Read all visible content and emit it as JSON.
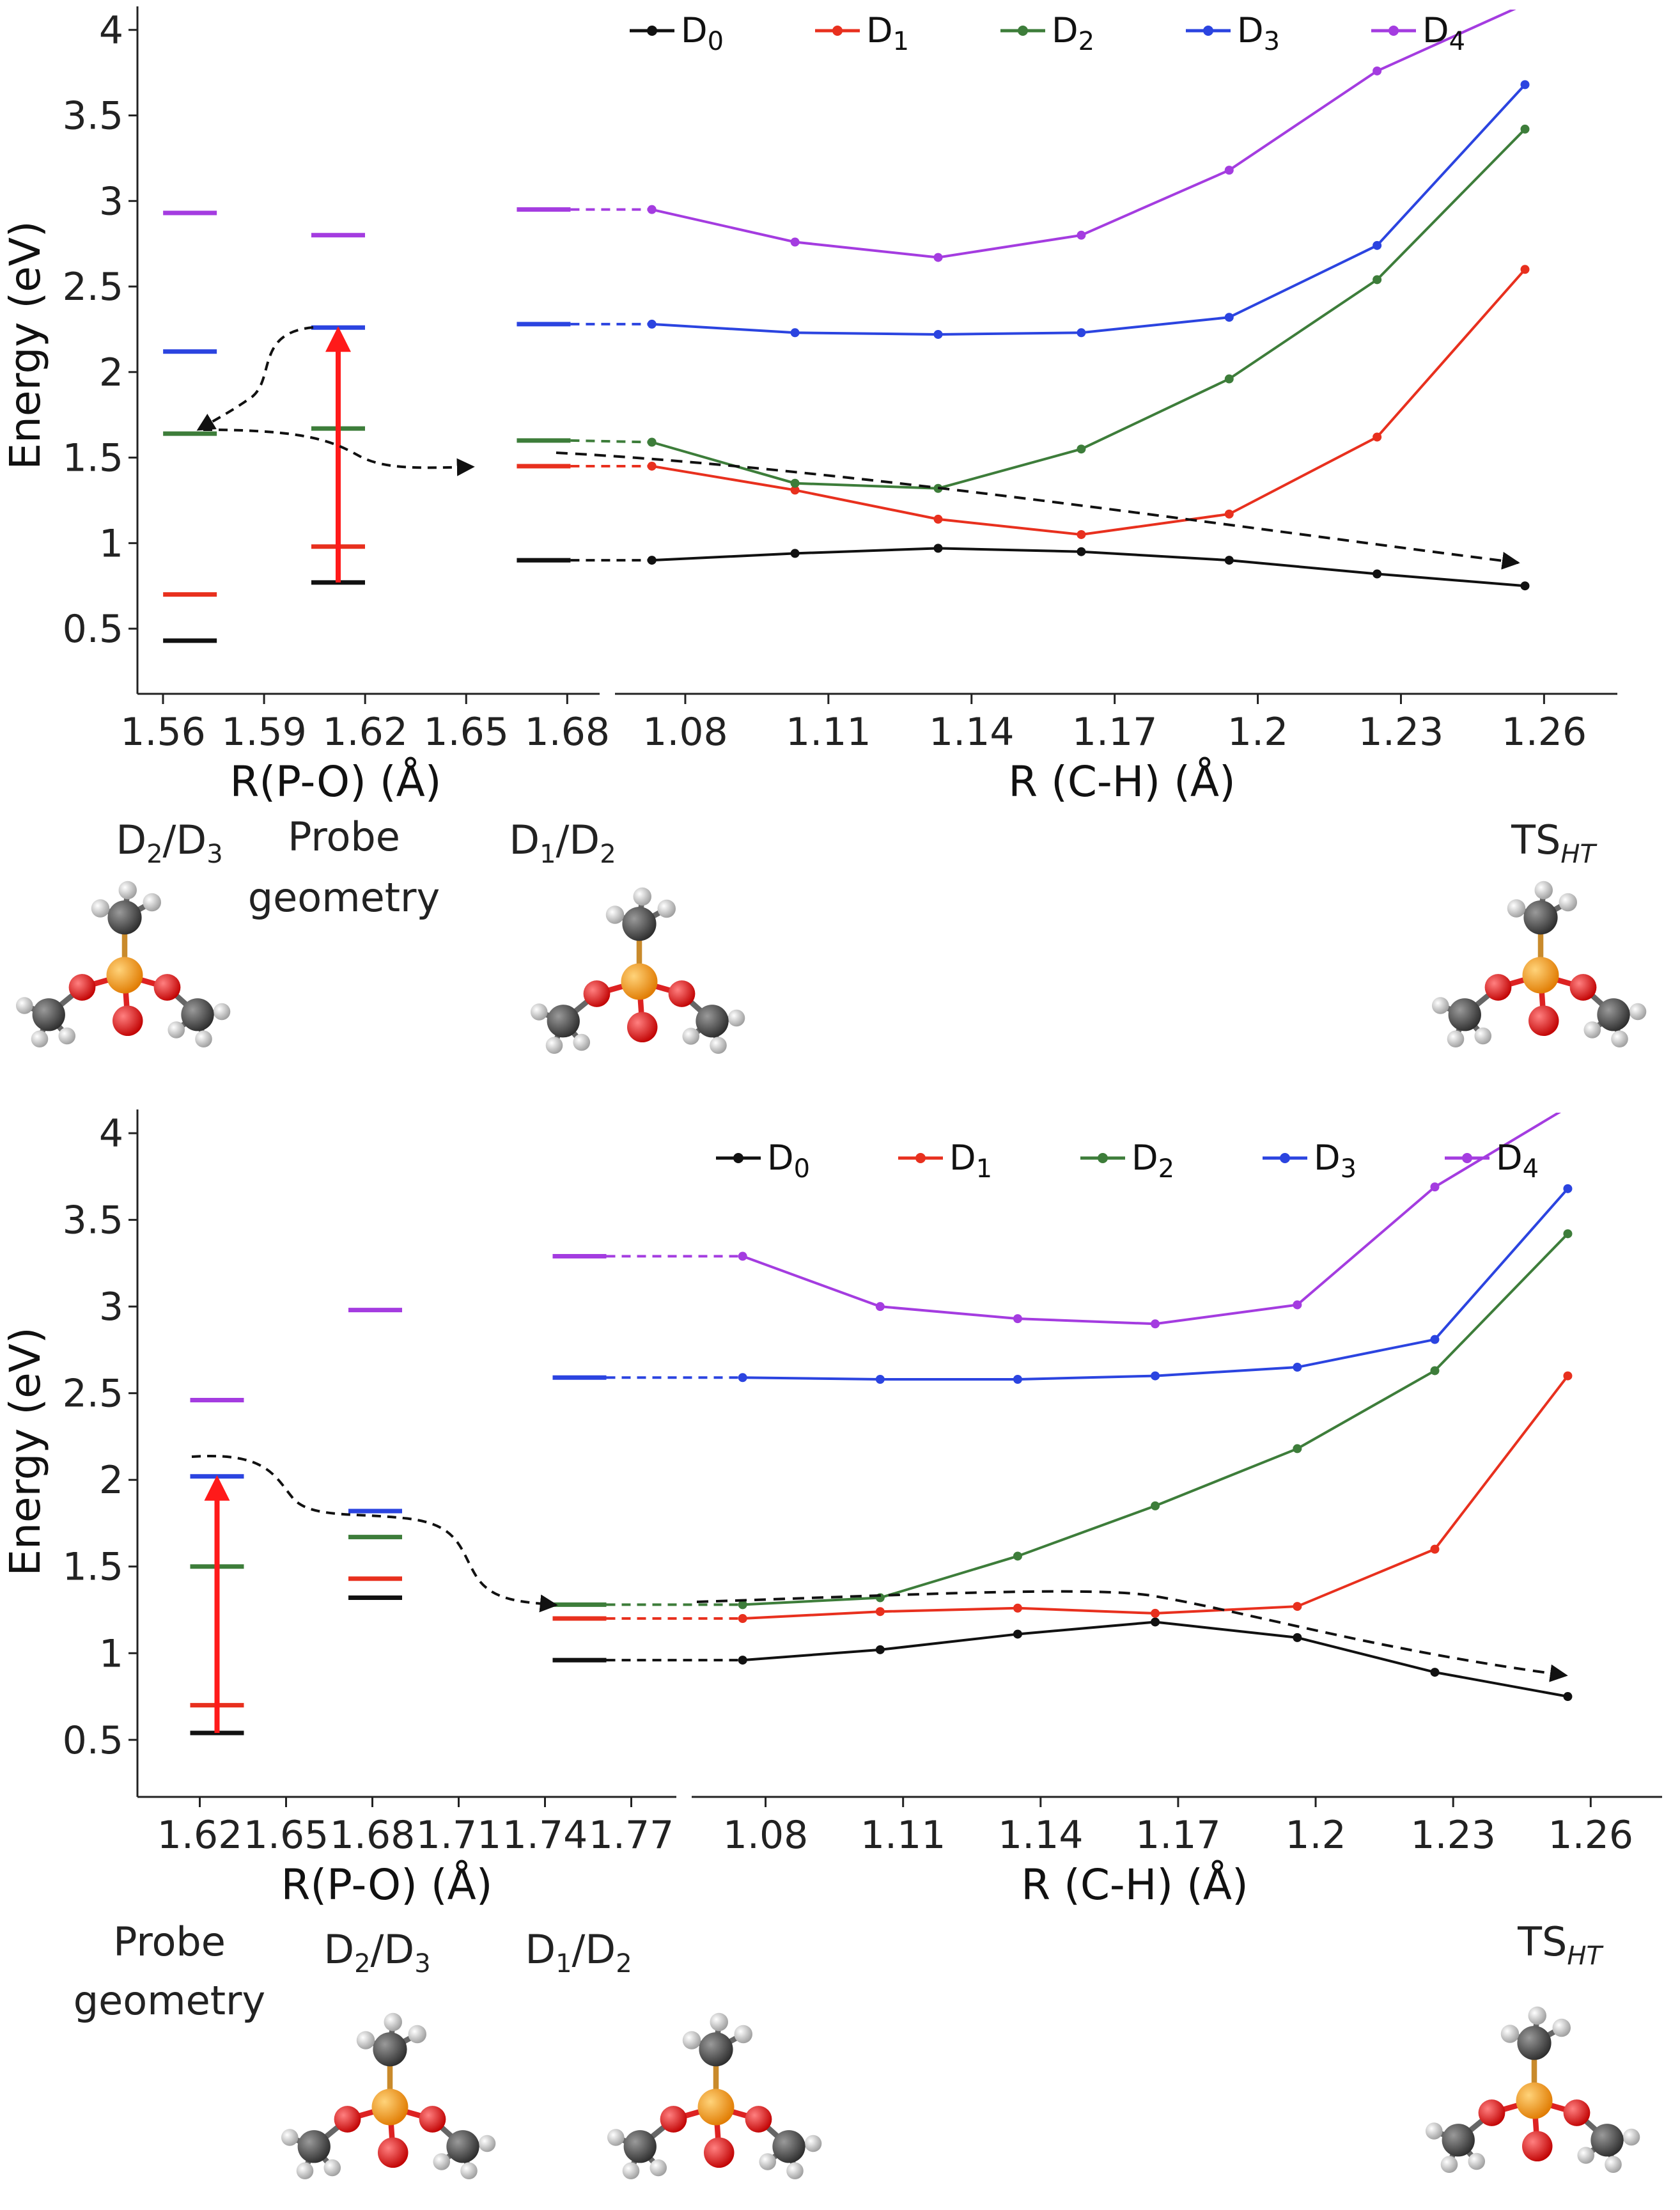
{
  "colors": {
    "D0": "#111111",
    "D1": "#e8301e",
    "D2": "#3d7d3a",
    "D3": "#2b44e0",
    "D4": "#a43ce0",
    "arrow": "#ff1a1a"
  },
  "chart_data": [
    {
      "type": "line",
      "ylabel": "Energy (eV)",
      "ylim": [
        0.25,
        4.1
      ],
      "yticks": [
        "0.5",
        "1",
        "1.5",
        "2",
        "2.5",
        "3",
        "3.5",
        "4"
      ],
      "legend": [
        "D",
        "D",
        "D",
        "D",
        "D"
      ],
      "legend_subs": [
        "0",
        "1",
        "2",
        "3",
        "4"
      ],
      "left_axis": {
        "xlabel": "R(P-O) (Å)",
        "ticks": [
          "1.56",
          "1.59",
          "1.62",
          "1.65",
          "1.68"
        ],
        "xlim": [
          1.56,
          1.69
        ]
      },
      "right_axis": {
        "xlabel": "R (C-H) (Å)",
        "ticks": [
          "1.08",
          "1.11",
          "1.14",
          "1.17",
          "1.2",
          "1.23",
          "1.26"
        ],
        "xlim": [
          1.065,
          1.27
        ]
      },
      "left_levels": [
        {
          "x": 1.568,
          "D0": 0.43,
          "D1": 0.7,
          "D2": 1.64,
          "D3": 2.12,
          "D4": 2.93
        },
        {
          "x": 1.612,
          "D0": 0.77,
          "D1": 0.98,
          "D2": 1.67,
          "D3": 2.26,
          "D4": 2.8
        },
        {
          "x": 1.673,
          "D0": 0.9,
          "D1": 1.45,
          "D2": 1.6,
          "D3": 2.28,
          "D4": 2.95
        }
      ],
      "x": [
        1.073,
        1.103,
        1.133,
        1.163,
        1.194,
        1.225,
        1.256
      ],
      "series": [
        {
          "name": "D0",
          "values": [
            0.9,
            0.94,
            0.97,
            0.95,
            0.9,
            0.82,
            0.75
          ]
        },
        {
          "name": "D1",
          "values": [
            1.45,
            1.31,
            1.14,
            1.05,
            1.17,
            1.62,
            2.6
          ]
        },
        {
          "name": "D2",
          "values": [
            1.59,
            1.35,
            1.32,
            1.55,
            1.96,
            2.54,
            3.42
          ]
        },
        {
          "name": "D3",
          "values": [
            2.28,
            2.23,
            2.22,
            2.23,
            2.32,
            2.74,
            3.68
          ]
        },
        {
          "name": "D4",
          "values": [
            2.95,
            2.76,
            2.67,
            2.8,
            3.18,
            3.76,
            4.15
          ]
        }
      ],
      "excitation": {
        "x": 1.612,
        "from": 0.77,
        "to": 2.26
      }
    },
    {
      "type": "line",
      "ylabel": "Energy (eV)",
      "ylim": [
        0.3,
        4.1
      ],
      "yticks": [
        "0.5",
        "1",
        "1.5",
        "2",
        "2.5",
        "3",
        "3.5",
        "4"
      ],
      "legend": [
        "D",
        "D",
        "D",
        "D",
        "D"
      ],
      "legend_subs": [
        "0",
        "1",
        "2",
        "3",
        "4"
      ],
      "left_axis": {
        "xlabel": "R(P-O) (Å)",
        "ticks": [
          "1.62",
          "1.65",
          "1.68",
          "1.71",
          "1.74",
          "1.77"
        ],
        "xlim": [
          1.605,
          1.785
        ]
      },
      "right_axis": {
        "xlabel": "R (C-H) (Å)",
        "ticks": [
          "1.08",
          "1.11",
          "1.14",
          "1.17",
          "1.2",
          "1.23",
          "1.26"
        ],
        "xlim": [
          1.065,
          1.27
        ]
      },
      "left_levels": [
        {
          "x": 1.626,
          "D0": 0.54,
          "D1": 0.7,
          "D2": 1.5,
          "D3": 2.02,
          "D4": 2.46
        },
        {
          "x": 1.681,
          "D0": 1.32,
          "D1": 1.43,
          "D2": 1.67,
          "D3": 1.82,
          "D4": 2.98
        },
        {
          "x": 1.752,
          "D0": 0.96,
          "D1": 1.2,
          "D2": 1.28,
          "D3": 2.59,
          "D4": 3.29
        }
      ],
      "x": [
        1.075,
        1.105,
        1.135,
        1.165,
        1.196,
        1.226,
        1.255
      ],
      "series": [
        {
          "name": "D0",
          "values": [
            0.96,
            1.02,
            1.11,
            1.18,
            1.09,
            0.89,
            0.75
          ]
        },
        {
          "name": "D1",
          "values": [
            1.2,
            1.24,
            1.26,
            1.23,
            1.27,
            1.6,
            2.6
          ]
        },
        {
          "name": "D2",
          "values": [
            1.28,
            1.32,
            1.56,
            1.85,
            2.18,
            2.63,
            3.42
          ]
        },
        {
          "name": "D3",
          "values": [
            2.59,
            2.58,
            2.58,
            2.6,
            2.65,
            2.81,
            3.68
          ]
        },
        {
          "name": "D4",
          "values": [
            3.29,
            3.0,
            2.93,
            2.9,
            3.01,
            3.69,
            4.15
          ]
        }
      ],
      "excitation": {
        "x": 1.626,
        "from": 0.54,
        "to": 2.02
      }
    }
  ],
  "labels": {
    "top": {
      "g1": "D",
      "g1a": "2",
      "g1b": "/D",
      "g1c": "3",
      "probe1": "Probe",
      "probe2": "geometry",
      "g2": "D",
      "g2a": "1",
      "g2b": "/D",
      "g2c": "2",
      "ts": "TS",
      "ts_sub": "HT"
    },
    "bottom": {
      "probe1": "Probe",
      "probe2": "geometry",
      "g1": "D",
      "g1a": "2",
      "g1b": "/D",
      "g1c": "3",
      "g2": "D",
      "g2a": "1",
      "g2b": "/D",
      "g2c": "2",
      "ts": "TS",
      "ts_sub": "HT"
    }
  }
}
